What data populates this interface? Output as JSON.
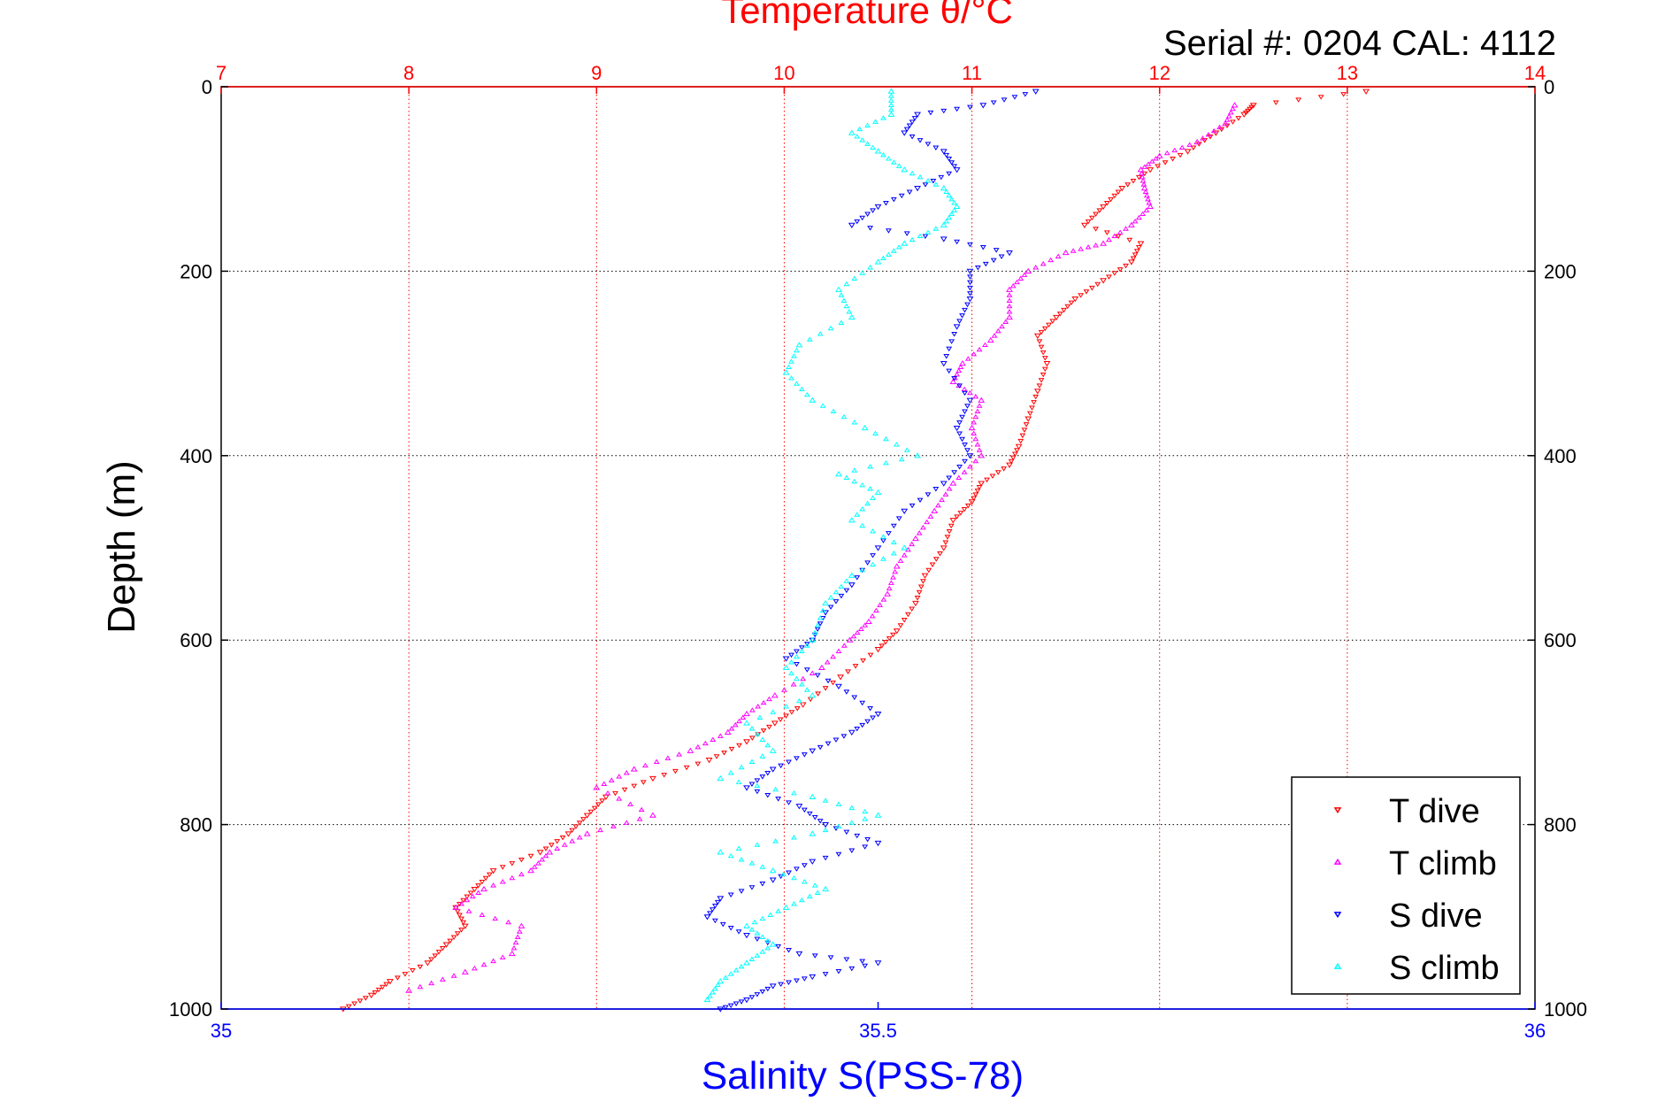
{
  "chart_data": {
    "type": "scatter",
    "title": "Temperature θ/°C",
    "subtitle": "Serial #: 0204  CAL: 4112",
    "xlabel": "Salinity S(PSS-78)",
    "ylabel": "Depth (m)",
    "temperature_axis": {
      "range": [
        7,
        14
      ],
      "ticks": [
        "7",
        "8",
        "9",
        "10",
        "11",
        "12",
        "13",
        "14"
      ],
      "color": "#ff0000"
    },
    "salinity_axis": {
      "range": [
        35,
        36
      ],
      "ticks": [
        "35",
        "35.5",
        "36"
      ],
      "color": "#0000ff"
    },
    "depth_axis": {
      "range": [
        0,
        1000
      ],
      "reversed": true,
      "ticks": [
        "0",
        "200",
        "400",
        "600",
        "800",
        "1000"
      ]
    },
    "grid": true,
    "legend_position": "bottom-right",
    "series": [
      {
        "name": "T dive",
        "axis": "temperature",
        "color": "#ff0000",
        "marker": "triangle-down",
        "points": [
          [
            13.1,
            5
          ],
          [
            12.5,
            20
          ],
          [
            12.45,
            30
          ],
          [
            12.3,
            50
          ],
          [
            12.15,
            70
          ],
          [
            11.95,
            90
          ],
          [
            11.8,
            110
          ],
          [
            11.7,
            130
          ],
          [
            11.6,
            150
          ],
          [
            11.9,
            170
          ],
          [
            11.85,
            190
          ],
          [
            11.7,
            210
          ],
          [
            11.55,
            230
          ],
          [
            11.45,
            250
          ],
          [
            11.35,
            270
          ],
          [
            11.4,
            300
          ],
          [
            11.35,
            330
          ],
          [
            11.3,
            360
          ],
          [
            11.25,
            390
          ],
          [
            11.2,
            410
          ],
          [
            11.05,
            430
          ],
          [
            11.0,
            450
          ],
          [
            10.9,
            470
          ],
          [
            10.85,
            500
          ],
          [
            10.75,
            530
          ],
          [
            10.7,
            560
          ],
          [
            10.6,
            590
          ],
          [
            10.5,
            610
          ],
          [
            10.3,
            640
          ],
          [
            10.1,
            670
          ],
          [
            9.95,
            690
          ],
          [
            9.8,
            710
          ],
          [
            9.6,
            730
          ],
          [
            9.3,
            750
          ],
          [
            9.05,
            770
          ],
          [
            8.95,
            790
          ],
          [
            8.85,
            810
          ],
          [
            8.7,
            830
          ],
          [
            8.45,
            850
          ],
          [
            8.35,
            870
          ],
          [
            8.25,
            890
          ],
          [
            8.3,
            910
          ],
          [
            8.2,
            930
          ],
          [
            8.1,
            950
          ],
          [
            7.9,
            970
          ],
          [
            7.8,
            985
          ],
          [
            7.65,
            1000
          ]
        ]
      },
      {
        "name": "T climb",
        "axis": "temperature",
        "color": "#ff00ff",
        "marker": "triangle-up",
        "points": [
          [
            12.4,
            20
          ],
          [
            12.35,
            40
          ],
          [
            12.2,
            60
          ],
          [
            12.0,
            75
          ],
          [
            11.9,
            90
          ],
          [
            11.92,
            110
          ],
          [
            11.95,
            130
          ],
          [
            11.85,
            150
          ],
          [
            11.7,
            170
          ],
          [
            11.5,
            180
          ],
          [
            11.3,
            200
          ],
          [
            11.2,
            220
          ],
          [
            11.2,
            250
          ],
          [
            11.1,
            275
          ],
          [
            10.95,
            300
          ],
          [
            10.9,
            320
          ],
          [
            11.05,
            340
          ],
          [
            11.0,
            370
          ],
          [
            11.05,
            400
          ],
          [
            10.9,
            430
          ],
          [
            10.8,
            460
          ],
          [
            10.7,
            490
          ],
          [
            10.6,
            520
          ],
          [
            10.55,
            550
          ],
          [
            10.45,
            580
          ],
          [
            10.35,
            600
          ],
          [
            10.2,
            630
          ],
          [
            9.95,
            660
          ],
          [
            9.8,
            680
          ],
          [
            9.7,
            700
          ],
          [
            9.5,
            720
          ],
          [
            9.2,
            740
          ],
          [
            9.0,
            760
          ],
          [
            9.3,
            790
          ],
          [
            8.95,
            810
          ],
          [
            8.75,
            830
          ],
          [
            8.65,
            850
          ],
          [
            8.4,
            870
          ],
          [
            8.25,
            890
          ],
          [
            8.6,
            910
          ],
          [
            8.55,
            940
          ],
          [
            8.3,
            960
          ],
          [
            8.0,
            980
          ]
        ]
      },
      {
        "name": "S dive",
        "axis": "salinity",
        "color": "#0000ff",
        "marker": "triangle-down",
        "points": [
          [
            35.62,
            5
          ],
          [
            35.58,
            20
          ],
          [
            35.53,
            30
          ],
          [
            35.52,
            50
          ],
          [
            35.55,
            70
          ],
          [
            35.56,
            90
          ],
          [
            35.53,
            110
          ],
          [
            35.5,
            130
          ],
          [
            35.48,
            150
          ],
          [
            35.55,
            165
          ],
          [
            35.6,
            180
          ],
          [
            35.57,
            200
          ],
          [
            35.57,
            230
          ],
          [
            35.56,
            260
          ],
          [
            35.55,
            300
          ],
          [
            35.57,
            340
          ],
          [
            35.56,
            370
          ],
          [
            35.57,
            400
          ],
          [
            35.55,
            430
          ],
          [
            35.52,
            460
          ],
          [
            35.5,
            500
          ],
          [
            35.48,
            540
          ],
          [
            35.46,
            570
          ],
          [
            35.45,
            600
          ],
          [
            35.43,
            620
          ],
          [
            35.47,
            650
          ],
          [
            35.5,
            680
          ],
          [
            35.48,
            700
          ],
          [
            35.45,
            720
          ],
          [
            35.42,
            740
          ],
          [
            35.4,
            760
          ],
          [
            35.44,
            780
          ],
          [
            35.46,
            800
          ],
          [
            35.5,
            820
          ],
          [
            35.45,
            840
          ],
          [
            35.42,
            860
          ],
          [
            35.38,
            880
          ],
          [
            35.37,
            900
          ],
          [
            35.4,
            920
          ],
          [
            35.44,
            940
          ],
          [
            35.5,
            950
          ],
          [
            35.45,
            965
          ],
          [
            35.42,
            975
          ],
          [
            35.4,
            990
          ],
          [
            35.38,
            1000
          ]
        ]
      },
      {
        "name": "S climb",
        "axis": "salinity",
        "color": "#00ffff",
        "marker": "triangle-up",
        "points": [
          [
            35.51,
            5
          ],
          [
            35.51,
            30
          ],
          [
            35.48,
            50
          ],
          [
            35.5,
            70
          ],
          [
            35.52,
            90
          ],
          [
            35.55,
            110
          ],
          [
            35.56,
            130
          ],
          [
            35.55,
            150
          ],
          [
            35.52,
            170
          ],
          [
            35.5,
            190
          ],
          [
            35.47,
            220
          ],
          [
            35.48,
            250
          ],
          [
            35.44,
            280
          ],
          [
            35.43,
            310
          ],
          [
            35.45,
            340
          ],
          [
            35.49,
            370
          ],
          [
            35.53,
            400
          ],
          [
            35.47,
            420
          ],
          [
            35.5,
            440
          ],
          [
            35.48,
            470
          ],
          [
            35.52,
            500
          ],
          [
            35.48,
            530
          ],
          [
            35.46,
            560
          ],
          [
            35.45,
            600
          ],
          [
            35.43,
            630
          ],
          [
            35.45,
            660
          ],
          [
            35.4,
            690
          ],
          [
            35.42,
            720
          ],
          [
            35.38,
            750
          ],
          [
            35.45,
            770
          ],
          [
            35.5,
            790
          ],
          [
            35.45,
            810
          ],
          [
            35.38,
            830
          ],
          [
            35.42,
            850
          ],
          [
            35.46,
            870
          ],
          [
            35.43,
            890
          ],
          [
            35.4,
            910
          ],
          [
            35.42,
            930
          ],
          [
            35.4,
            950
          ],
          [
            35.38,
            970
          ],
          [
            35.37,
            990
          ]
        ]
      }
    ]
  }
}
